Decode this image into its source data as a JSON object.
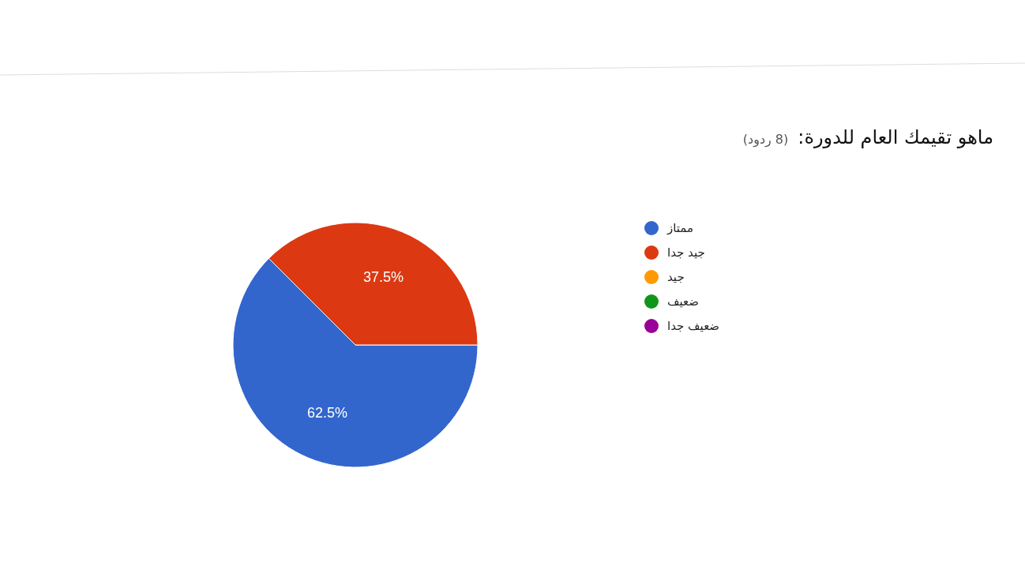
{
  "chart_data": {
    "type": "pie",
    "title": "ماهو تقيمك العام للدورة:",
    "subtitle": "(8 ردود)",
    "categories": [
      "ممتاز",
      "جيد جدا",
      "جيد",
      "ضعيف",
      "ضعيف جدا"
    ],
    "values": [
      62.5,
      37.5,
      0,
      0,
      0
    ],
    "colors": [
      "#3366cc",
      "#dc3912",
      "#ff9900",
      "#109618",
      "#990099"
    ],
    "value_labels": [
      "62.5%",
      "37.5%",
      null,
      null,
      null
    ],
    "legend": "right"
  }
}
